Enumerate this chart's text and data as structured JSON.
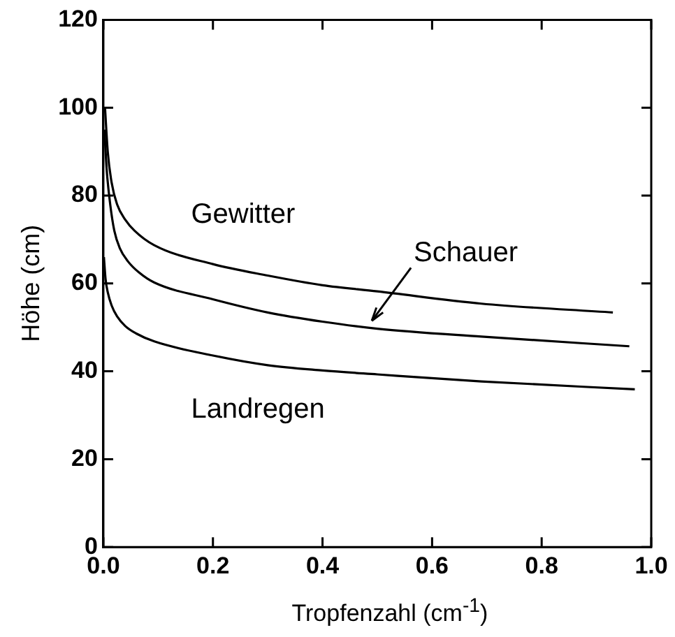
{
  "chart_data": {
    "type": "line",
    "xlabel": "Tropfenzahl (cm$^{-1}$)",
    "ylabel": "Höhe (cm)",
    "xlim": [
      0,
      1
    ],
    "xticks": [
      {
        "value": 0,
        "label": "0.0"
      },
      0.2,
      0.4,
      0.6,
      0.8,
      {
        "value": 1,
        "label": "1.0"
      }
    ],
    "ylim": [
      0,
      120
    ],
    "yticks": [
      0,
      20,
      40,
      60,
      80,
      100,
      120
    ],
    "grid": false,
    "legend": false,
    "marker": "none",
    "line_style": "solid",
    "series": [
      {
        "color": "#000000",
        "x": [
          0.003,
          0.008,
          0.015,
          0.025,
          0.04,
          0.057,
          0.093,
          0.2,
          0.3,
          0.4,
          0.5,
          0.69,
          0.93
        ],
        "values": [
          100,
          90,
          83,
          78,
          74.5,
          72,
          68.7,
          64.4,
          61.8,
          59.6,
          58.2,
          55.4,
          53.4
        ]
      },
      {
        "color": "#000000",
        "x": [
          0.002,
          0.006,
          0.0125,
          0.02,
          0.03,
          0.045,
          0.065,
          0.093,
          0.2,
          0.3,
          0.4,
          0.5,
          0.69,
          0.96
        ],
        "values": [
          95,
          86,
          78,
          72,
          68,
          65,
          62.5,
          60.2,
          56.4,
          53.4,
          51.3,
          49.7,
          47.9,
          45.7
        ]
      },
      {
        "color": "#000000",
        "x": [
          0.001,
          0.004,
          0.008,
          0.015,
          0.025,
          0.04,
          0.06,
          0.093,
          0.2,
          0.3,
          0.4,
          0.5,
          0.69,
          0.97
        ],
        "values": [
          66,
          61,
          58,
          55,
          52.5,
          50.3,
          48.6,
          46.8,
          43.6,
          41.4,
          40.2,
          39.3,
          37.7,
          35.9
        ]
      }
    ],
    "annotations": [
      "Gewitter",
      {
        "text": "Schauer",
        "x": 0.49,
        "y": 51.5
      },
      "Landregen"
    ]
  }
}
